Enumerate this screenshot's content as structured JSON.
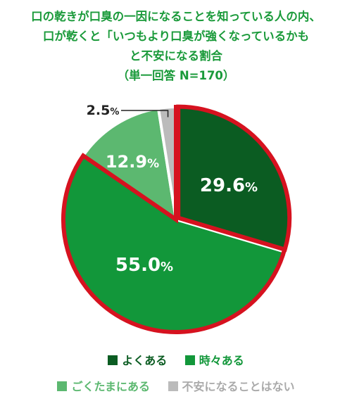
{
  "chart_data": {
    "type": "pie",
    "title_lines": [
      "口の乾きが口臭の一因になることを知っている人の内、",
      "口が乾くと「いつもより口臭が強くなっているかも",
      "と不安になる割合",
      "（単一回答 N=170）"
    ],
    "slices": [
      {
        "label": "よくある",
        "value": 29.6,
        "display": "29.6",
        "color": "#0b5c22",
        "label_color": "#0b5c22"
      },
      {
        "label": "時々ある",
        "value": 55.0,
        "display": "55.0",
        "color": "#12973a",
        "label_color": "#12973a"
      },
      {
        "label": "ごくたまにある",
        "value": 12.9,
        "display": "12.9",
        "color": "#5cb870",
        "label_color": "#5cb870"
      },
      {
        "label": "不安になることはない",
        "value": 2.5,
        "display": "2.5",
        "color": "#bbbbbb",
        "label_color": "#aaaaaa"
      }
    ],
    "unit": "%",
    "highlight_color": "#d6121f",
    "start": "12 o'clock, clockwise"
  }
}
